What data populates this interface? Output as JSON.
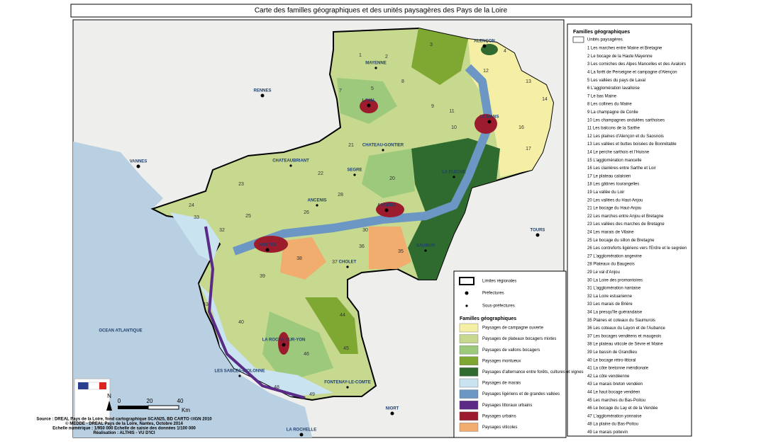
{
  "header": {
    "title": "Carte des familles géographiques et des unités paysagères des Pays de la Loire"
  },
  "units_legend": {
    "title": "Familles géographiques",
    "box_label": "Unités paysagères",
    "items": [
      "1 Les marches entre Maine et Bretagne",
      "2 Le bocage de la Haute Mayenne",
      "3 Les corniches des Alpes Mancelles et des Avaloirs",
      "4 La forêt de Perseigne et campagne d'Alençon",
      "5 Les vallées du pays de Laval",
      "6 L'agglomération lavalloise",
      "7 Le bas Maine",
      "8 Les collines du Maine",
      "9 La champagne de Conlie",
      "10 Les champagnes ondulées sarthoises",
      "11 Les balcons de la Sarthe",
      "12 Les plaines d'Alençon et du Saosnois",
      "13 Les vallées et buttes boisées de Bonnétable",
      "14 Le perche sarthois et l'Huisne",
      "15 L'agglomération mancelle",
      "16 Les clairières entre Sarthe et Loir",
      "17 Le plateau calaisien",
      "18 Les gâtines tourangelles",
      "19 La vallée du Loir",
      "20 Les vallées du Haut-Anjou",
      "21 Le bocage du Haut-Anjou",
      "22 Les marches entre Anjou et Bretagne",
      "23 Les vallées des marches de Bretagne",
      "24 Les marais de Vilaine",
      "25 Le bocage du sillon de Bretagne",
      "26 Les contreforts ligériens vers l'Erdre et le segréen",
      "27 L'agglomération angevine",
      "28 Plateaux du Baugeois",
      "29 Le val d'Anjou",
      "30 La Loire des promontoires",
      "31 L'agglomération nantaise",
      "32 La Loire estuarienne",
      "33 Les marais de Brière",
      "34 La presqu'île guérandaise",
      "35 Plaines et coteaux du Saumurois",
      "36 Les coteaux du Layon et de l'Aubance",
      "37 Les bocages vendéens et maugeois",
      "38 Le plateau viticole de Sèvre et Maine",
      "39 Le bassin de Grandlieu",
      "40 Le bocage rétro-littoral",
      "41 La côte bretonne méridionale",
      "42 La côte vendéenne",
      "43 Le marais breton vendéen",
      "44 Le haut bocage vendéen",
      "45 Les marches du Bas-Poitou",
      "46 Le bocage du Lay et de la Vendée",
      "47 L'agglomération yonnaise",
      "48 La plaine du Bas-Poitou",
      "49 Le marais poitevin"
    ]
  },
  "symbols": [
    "Limites régionales",
    "Préfectures",
    "Sous-préfectures"
  ],
  "families": {
    "title": "Familles géographiques",
    "items": [
      {
        "label": "Paysages de campagne ouverte",
        "color": "#f5efa6"
      },
      {
        "label": "Paysages de plateaux bocagers mixtes",
        "color": "#c6d98f"
      },
      {
        "label": "Paysages de vallons bocagers",
        "color": "#9cc97c"
      },
      {
        "label": "Paysages montueux",
        "color": "#7ea832"
      },
      {
        "label": "Paysages d'alternance entre forêts, cultures et vignes",
        "color": "#2f6b2f"
      },
      {
        "label": "Paysages de marais",
        "color": "#c9e3f0"
      },
      {
        "label": "Paysages ligériens et de grandes vallées",
        "color": "#6c97c4"
      },
      {
        "label": "Paysages littoraux urbains",
        "color": "#5b2a87"
      },
      {
        "label": "Paysages urbains",
        "color": "#9c1c2e"
      },
      {
        "label": "Paysages viticoles",
        "color": "#f0ad6e"
      }
    ]
  },
  "scale": {
    "north": "N",
    "ticks": [
      "0",
      "20",
      "40"
    ],
    "unit": "Km"
  },
  "source": [
    "Source : DREAL Pays de la Loire, fond cartographique SCAN25, BD CARTO ©IGN 2010",
    "© MEDDE - DREAL Pays de la Loire, Nantes, Octobre 2014",
    "Echelle numérique : 1/950 000 Echelle de saisie des données 1/100 000",
    "Réalisation : ALTHIS - VU D'ICI"
  ],
  "cities": [
    "ALENÇON",
    "MAYENNE",
    "RENNES",
    "LAVAL",
    "LE MANS",
    "CHATEAU-GONTIER",
    "CHATEAUBRIANT",
    "SEGRE",
    "VANNES",
    "LA FLECHE",
    "ANCENIS",
    "ANGERS",
    "SAUMUR",
    "TOURS",
    "NANTES",
    "CHOLET",
    "LA ROCHE-SUR-YON",
    "LES SABLES-D'OLONNE",
    "FONTENAY-LE-COMTE",
    "NIORT",
    "LA ROCHELLE",
    "OCEAN ATLANTIQUE"
  ],
  "unit_numbers": [
    "1",
    "2",
    "3",
    "4",
    "5",
    "7",
    "8",
    "9",
    "10",
    "11",
    "12",
    "13",
    "14",
    "16",
    "17",
    "20",
    "21",
    "22",
    "23",
    "24",
    "25",
    "26",
    "28",
    "30",
    "32",
    "33",
    "35",
    "36",
    "37",
    "38",
    "39",
    "40",
    "43",
    "44",
    "45",
    "46",
    "48",
    "49"
  ]
}
